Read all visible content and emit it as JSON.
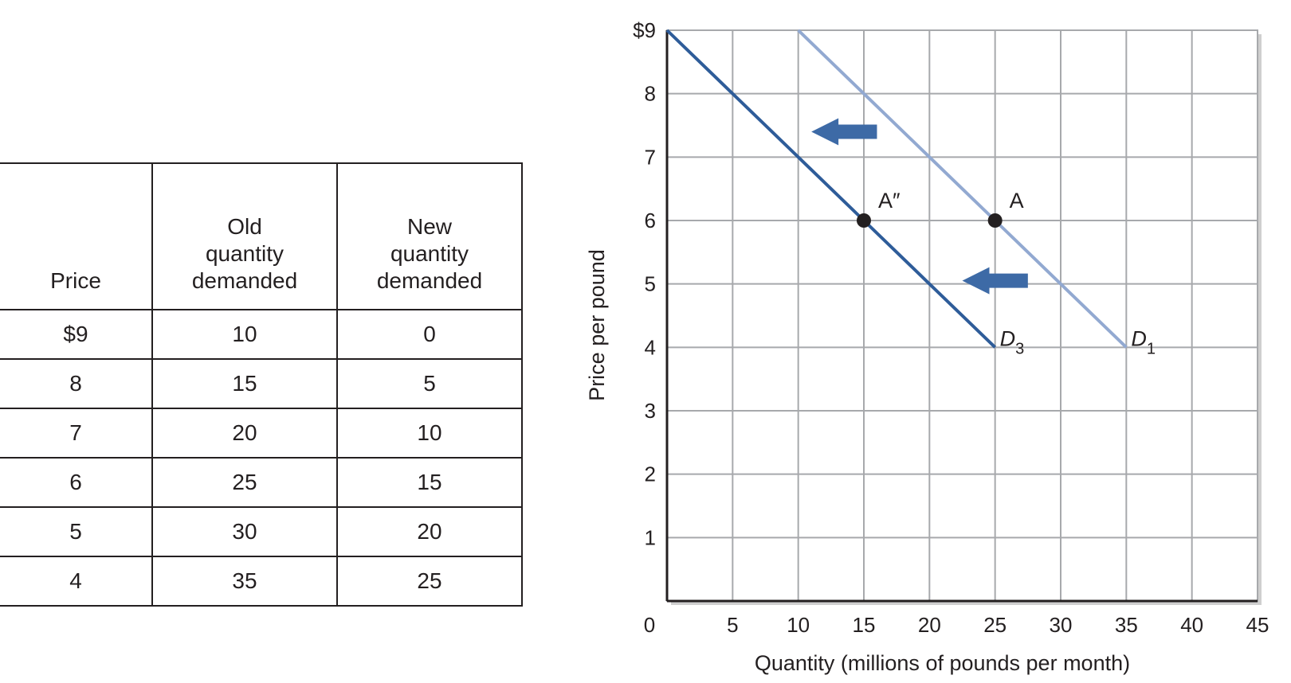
{
  "table": {
    "headers": [
      [
        "Price"
      ],
      [
        "Old",
        "quantity",
        "demanded"
      ],
      [
        "New",
        "quantity",
        "demanded"
      ]
    ],
    "rows": [
      [
        "$9",
        "10",
        "0"
      ],
      [
        "8",
        "15",
        "5"
      ],
      [
        "7",
        "20",
        "10"
      ],
      [
        "6",
        "25",
        "15"
      ],
      [
        "5",
        "30",
        "20"
      ],
      [
        "4",
        "35",
        "25"
      ]
    ]
  },
  "chart_data": {
    "type": "line",
    "title": "",
    "xlabel": "Quantity (millions of pounds per month)",
    "ylabel": "Price per pound",
    "xlim": [
      0,
      45
    ],
    "ylim": [
      0,
      9
    ],
    "x_ticks": [
      0,
      5,
      10,
      15,
      20,
      25,
      30,
      35,
      40,
      45
    ],
    "y_ticks": [
      1,
      2,
      3,
      4,
      5,
      6,
      7,
      8,
      9
    ],
    "y_tick_labels": [
      "1",
      "2",
      "3",
      "4",
      "5",
      "6",
      "7",
      "8",
      "$9"
    ],
    "grid": true,
    "series": [
      {
        "name": "D1",
        "label_main": "D",
        "label_sub": "1",
        "color": "#92a9d1",
        "x": [
          10,
          15,
          20,
          25,
          30,
          35
        ],
        "y": [
          9,
          8,
          7,
          6,
          5,
          4
        ]
      },
      {
        "name": "D3",
        "label_main": "D",
        "label_sub": "3",
        "color": "#2e5c99",
        "x": [
          0,
          5,
          10,
          15,
          20,
          25
        ],
        "y": [
          9,
          8,
          7,
          6,
          5,
          4
        ]
      }
    ],
    "points": [
      {
        "label": "A",
        "x": 25,
        "y": 6
      },
      {
        "label": "A″",
        "x": 15,
        "y": 6
      }
    ],
    "arrows": [
      {
        "direction": "left",
        "from_x": 16,
        "to_x": 11,
        "y": 7.4,
        "color": "#3d6aa6"
      },
      {
        "direction": "left",
        "from_x": 27.5,
        "to_x": 22.5,
        "y": 5.05,
        "color": "#3d6aa6"
      }
    ]
  }
}
